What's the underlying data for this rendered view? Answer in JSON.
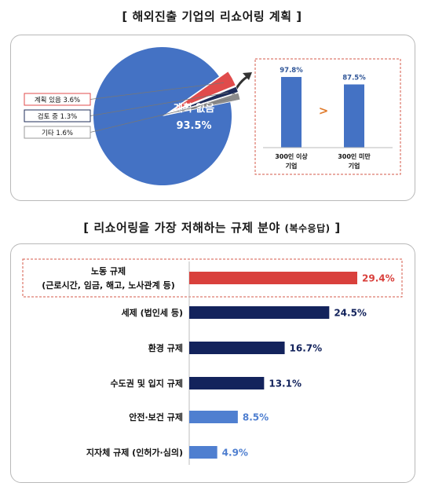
{
  "top_title": "[ 해외진출 기업의 리쇼어링 계획 ]",
  "bottom_title_main": "[ 리쇼어링을 가장 저해하는 규제 분야",
  "bottom_title_sub": "(복수응답)",
  "bottom_title_close": "]",
  "colors": {
    "pie_blue": "#4472c4",
    "pie_red": "#e04b4b",
    "pie_dark": "#1f2d5a",
    "pie_gray": "#8c8c8c",
    "bar_red": "#d9403c",
    "bar_navy": "#13235c",
    "bar_light": "#4f7fd0",
    "accent_orange": "#e07b2c"
  },
  "chart_data": [
    {
      "type": "pie",
      "slices": [
        {
          "label": "계획 없음",
          "value": 93.5,
          "display": "93.5%"
        },
        {
          "label": "계획 있음",
          "value": 3.6,
          "display": "계획 있음 3.6%"
        },
        {
          "label": "검토 중",
          "value": 1.3,
          "display": "검토 중 1.3%"
        },
        {
          "label": "기타",
          "value": 1.6,
          "display": "기타 1.6%"
        }
      ]
    },
    {
      "type": "bar",
      "categories": [
        "300인 이상 기업",
        "300인 미만 기업"
      ],
      "category_lines": [
        [
          "300인 이상",
          "기업"
        ],
        [
          "300인 미만",
          "기업"
        ]
      ],
      "values": [
        97.8,
        87.5
      ],
      "value_labels": [
        "97.8%",
        "87.5%"
      ],
      "comparison_symbol": ">",
      "ylim": [
        0,
        100
      ]
    },
    {
      "type": "bar",
      "orientation": "horizontal",
      "categories": [
        "노동 규제 (근로시간, 임금, 해고, 노사관계 등)",
        "세제 (법인세 등)",
        "환경 규제",
        "수도권 및 입지 규제",
        "안전·보건 규제",
        "지자체 규제 (인허가·심의)"
      ],
      "category_lines": [
        [
          "노동 규제",
          "(근로시간, 임금, 해고, 노사관계 등)"
        ],
        [
          "세제 (법인세 등)"
        ],
        [
          "환경 규제"
        ],
        [
          "수도권 및 입지 규제"
        ],
        [
          "안전·보건 규제"
        ],
        [
          "지자체 규제 (인허가·심의)"
        ]
      ],
      "values": [
        29.4,
        24.5,
        16.7,
        13.1,
        8.5,
        4.9
      ],
      "value_labels": [
        "29.4%",
        "24.5%",
        "16.7%",
        "13.1%",
        "8.5%",
        "4.9%"
      ],
      "highlight_index": 0,
      "xlim": [
        0,
        30
      ]
    }
  ]
}
